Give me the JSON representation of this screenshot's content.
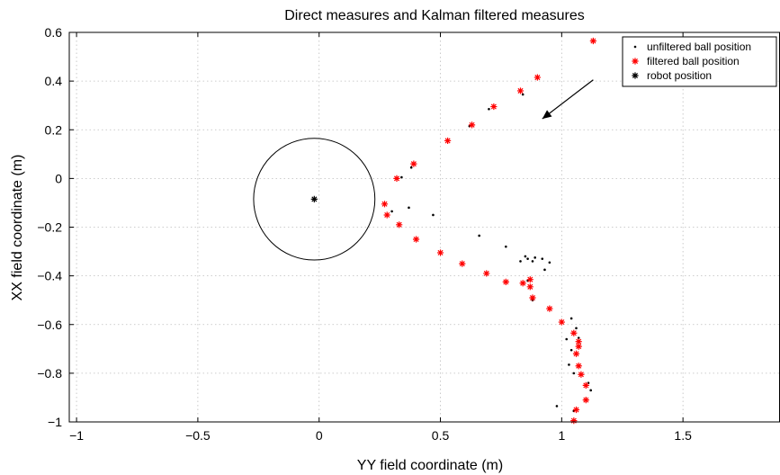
{
  "chart_data": {
    "type": "scatter",
    "title": "Direct measures and Kalman filtered measures",
    "xlabel": "YY field coordinate (m)",
    "ylabel": "XX field coordinate (m)",
    "xlim": [
      -1.03,
      1.9
    ],
    "ylim": [
      -1.0,
      0.6
    ],
    "xticks": [
      -1,
      -0.5,
      0,
      0.5,
      1,
      1.5
    ],
    "xtick_labels": [
      "−1",
      "−0.5",
      "0",
      "0.5",
      "1",
      "1.5"
    ],
    "yticks": [
      0.6,
      0.4,
      0.2,
      0,
      -0.2,
      -0.4,
      -0.6,
      -0.8,
      -1
    ],
    "ytick_labels": [
      "0.6",
      "0.4",
      "0.2",
      "0",
      "−0.2",
      "−0.4",
      "−0.6",
      "−0.8",
      "−1"
    ],
    "grid": true,
    "legend_position": "top-right",
    "series": [
      {
        "name": "unfiltered ball position",
        "marker": "dot",
        "color": "#000000",
        "x": [
          0.84,
          0.7,
          0.62,
          0.38,
          0.34,
          0.37,
          0.3,
          0.47,
          0.66,
          0.77,
          0.83,
          0.85,
          0.86,
          0.88,
          0.89,
          0.92,
          0.93,
          0.95,
          0.86,
          0.88,
          1.04,
          1.06,
          1.07,
          1.04,
          1.02,
          1.03,
          1.05,
          1.11,
          1.12,
          1.05,
          0.98
        ],
        "y": [
          0.345,
          0.285,
          0.215,
          0.045,
          0.005,
          -0.12,
          -0.135,
          -0.15,
          -0.235,
          -0.28,
          -0.34,
          -0.32,
          -0.33,
          -0.34,
          -0.325,
          -0.33,
          -0.375,
          -0.345,
          -0.42,
          -0.5,
          -0.575,
          -0.615,
          -0.655,
          -0.705,
          -0.66,
          -0.765,
          -0.8,
          -0.84,
          -0.87,
          -0.955,
          -0.935
        ]
      },
      {
        "name": "filtered ball position",
        "marker": "star",
        "color": "#ff0000",
        "x": [
          1.13,
          0.9,
          0.83,
          0.72,
          0.63,
          0.53,
          0.39,
          0.32,
          0.27,
          0.28,
          0.33,
          0.4,
          0.5,
          0.59,
          0.69,
          0.77,
          0.84,
          0.87,
          0.87,
          0.88,
          0.95,
          1.0,
          1.05,
          1.07,
          1.07,
          1.06,
          1.07,
          1.08,
          1.1,
          1.1,
          1.06,
          1.05
        ],
        "y": [
          0.565,
          0.415,
          0.36,
          0.295,
          0.22,
          0.155,
          0.06,
          0.0,
          -0.105,
          -0.15,
          -0.19,
          -0.25,
          -0.305,
          -0.35,
          -0.39,
          -0.425,
          -0.43,
          -0.415,
          -0.445,
          -0.49,
          -0.535,
          -0.59,
          -0.635,
          -0.67,
          -0.69,
          -0.72,
          -0.77,
          -0.805,
          -0.85,
          -0.91,
          -0.95,
          -0.995
        ]
      },
      {
        "name": "robot position",
        "marker": "star",
        "color": "#000000",
        "x": [
          -0.02
        ],
        "y": [
          -0.085
        ]
      }
    ],
    "annotations": [
      {
        "type": "circle",
        "center": [
          -0.02,
          -0.085
        ],
        "radius": 0.25
      },
      {
        "type": "arrow",
        "from": [
          1.13,
          0.405
        ],
        "to": [
          0.92,
          0.245
        ]
      }
    ]
  }
}
